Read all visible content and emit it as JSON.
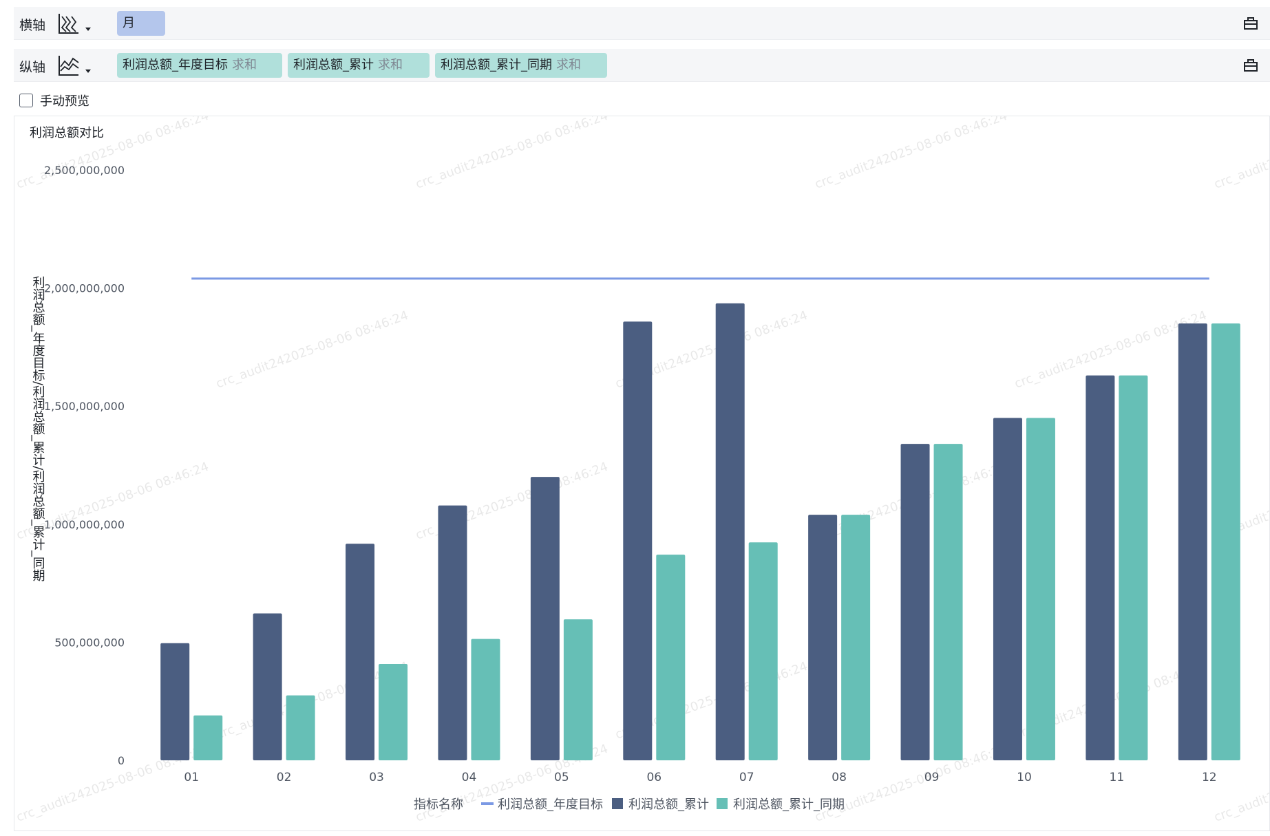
{
  "toolbar": {
    "x_axis": {
      "label": "横轴",
      "icon": "line-chart-icon",
      "fields": [
        {
          "name": "月",
          "agg": ""
        }
      ]
    },
    "y_axis": {
      "label": "纵轴",
      "icon": "area-chart-icon",
      "fields": [
        {
          "name": "利润总额_年度目标",
          "agg": "求和"
        },
        {
          "name": "利润总额_累计",
          "agg": "求和"
        },
        {
          "name": "利润总额_累计_同期",
          "agg": "求和"
        }
      ]
    },
    "manual_preview_label": "手动预览"
  },
  "watermark_text": "crc_audit242025-08-06 08:46:24",
  "colors": {
    "target_line": "#7b99e4",
    "cumulative": "#4b5e81",
    "same_period": "#66bfb6",
    "dim_pill": "#b4c6ec",
    "measure_pill": "#b0e0db"
  },
  "chart_data": {
    "type": "bar",
    "title": "利润总额对比",
    "xlabel": "",
    "ylabel": "利润总额_年度目标/利润总额_累计/利润总额_累计_同期",
    "categories": [
      "01",
      "02",
      "03",
      "04",
      "05",
      "06",
      "07",
      "08",
      "09",
      "10",
      "11",
      "12"
    ],
    "ylim": [
      0,
      2500000000
    ],
    "yticks": [
      0,
      500000000,
      1000000000,
      1500000000,
      2000000000,
      2500000000
    ],
    "ytick_labels": [
      "0",
      "500,000,000",
      "1,000,000,000",
      "1,500,000,000",
      "2,000,000,000",
      "2,500,000,000"
    ],
    "grid": false,
    "legend": {
      "position": "bottom",
      "title": "指标名称"
    },
    "series": [
      {
        "name": "利润总额_年度目标",
        "type": "line",
        "values": [
          2040000000,
          2040000000,
          2040000000,
          2040000000,
          2040000000,
          2040000000,
          2040000000,
          2040000000,
          2040000000,
          2040000000,
          2040000000,
          2040000000
        ]
      },
      {
        "name": "利润总额_累计",
        "type": "bar",
        "values": [
          496000000,
          622000000,
          917000000,
          1079000000,
          1200000000,
          1858000000,
          1935000000,
          1040000000,
          1340000000,
          1450000000,
          1630000000,
          1850000000
        ]
      },
      {
        "name": "利润总额_累计_同期",
        "type": "bar",
        "values": [
          190000000,
          275000000,
          408000000,
          514000000,
          597000000,
          871000000,
          923000000,
          1040000000,
          1340000000,
          1450000000,
          1630000000,
          1850000000
        ]
      }
    ]
  }
}
